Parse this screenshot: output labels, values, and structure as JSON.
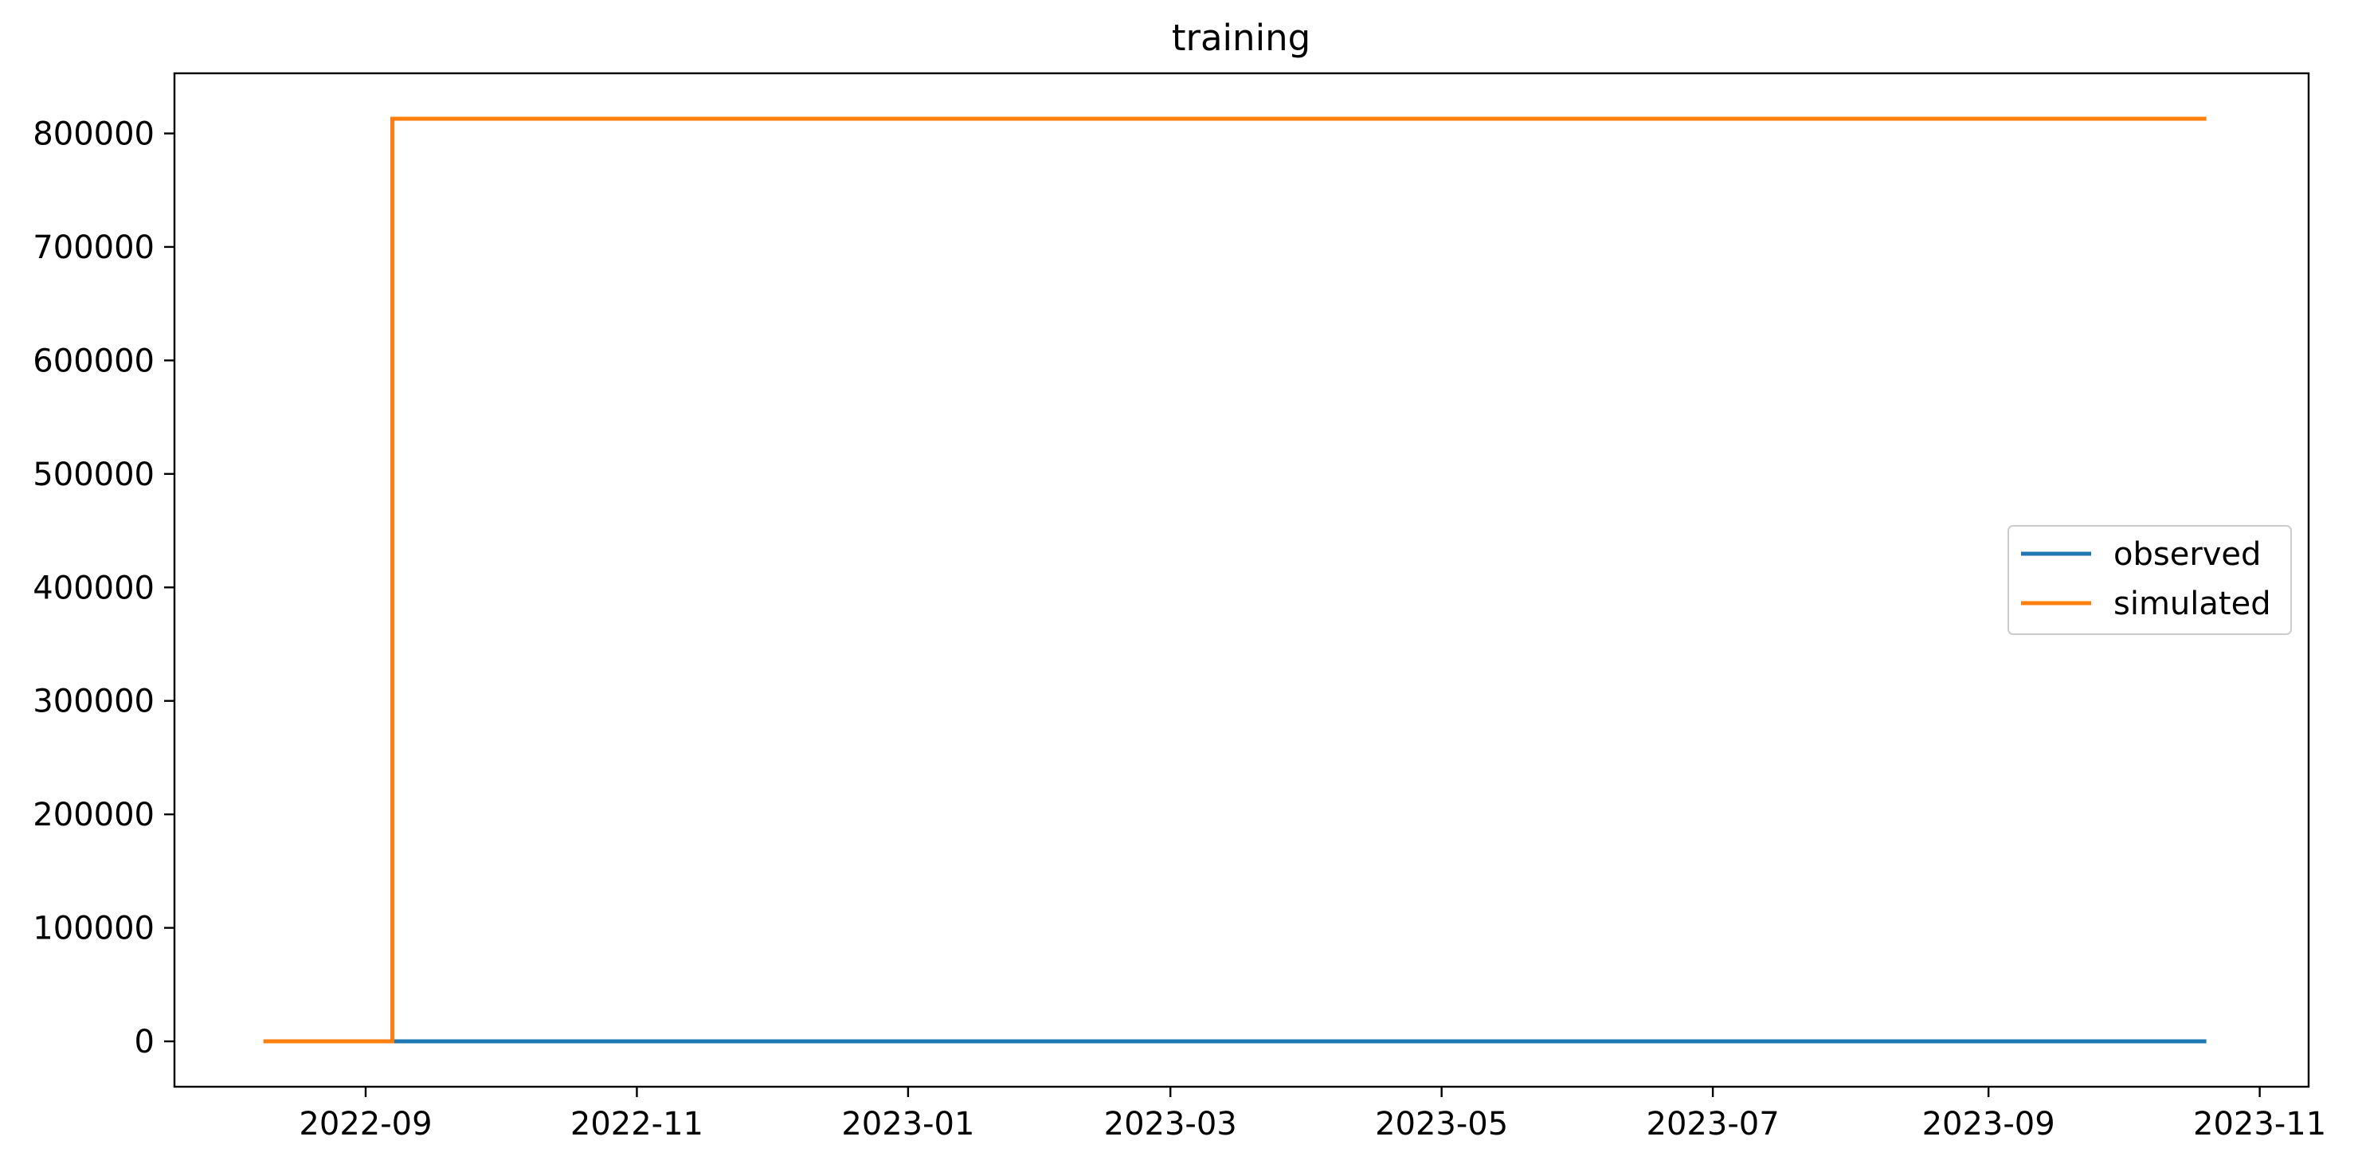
{
  "chart_data": {
    "type": "line",
    "title": "training",
    "xlabel": "",
    "ylabel": "",
    "x_scale": "time",
    "xlim": [
      "2022-07-20",
      "2023-11-12"
    ],
    "ylim": [
      -40000,
      853000
    ],
    "x_ticks": [
      "2022-09",
      "2022-11",
      "2023-01",
      "2023-03",
      "2023-05",
      "2023-07",
      "2023-09",
      "2023-11"
    ],
    "y_ticks": [
      0,
      100000,
      200000,
      300000,
      400000,
      500000,
      600000,
      700000,
      800000
    ],
    "grid": false,
    "legend_position": "center-right",
    "series": [
      {
        "name": "observed",
        "color": "#1f77b4",
        "points": [
          {
            "x": "2022-09-07",
            "y": 0
          },
          {
            "x": "2023-10-20",
            "y": 0
          }
        ]
      },
      {
        "name": "simulated",
        "color": "#ff7f0e",
        "points": [
          {
            "x": "2022-08-09",
            "y": 0
          },
          {
            "x": "2022-09-07",
            "y": 0
          },
          {
            "x": "2022-09-07",
            "y": 813000
          },
          {
            "x": "2023-10-20",
            "y": 813000
          }
        ]
      }
    ]
  }
}
